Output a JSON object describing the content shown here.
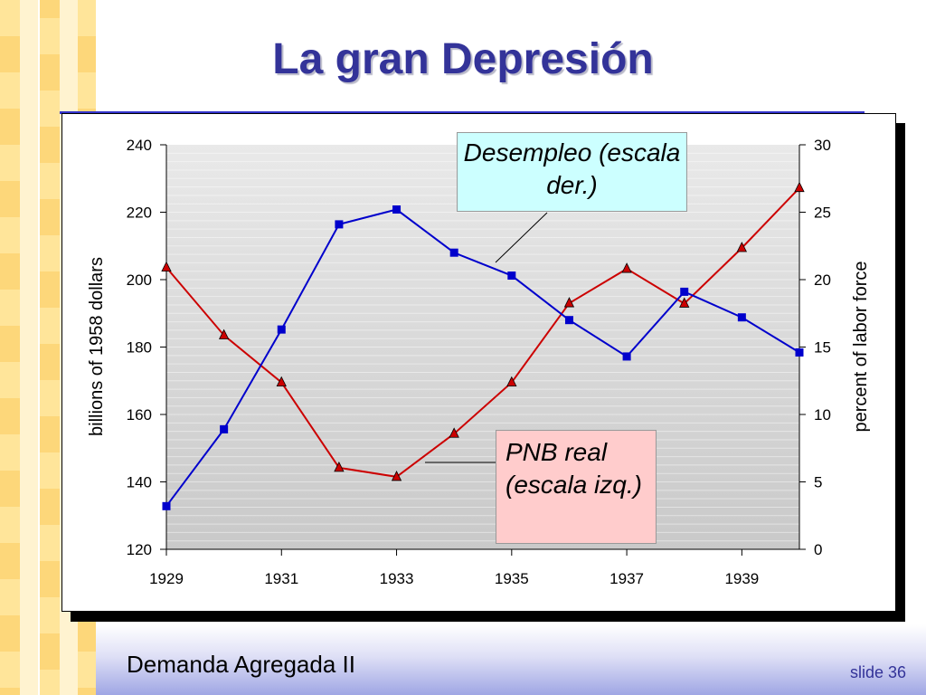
{
  "slide": {
    "title": "La gran Depresión",
    "footer": "Demanda Agregada II",
    "slide_number": "slide 36"
  },
  "callouts": {
    "unemployment": "Desempleo (escala der.)",
    "gnp": "PNB real (escala izq.)"
  },
  "colors": {
    "title": "#333399",
    "gnp_series": "#cc0000",
    "unemployment_series": "#0000cc",
    "plot_area": "#d8d8d8",
    "checker_light": "#ffe59a",
    "checker_mid": "#fdd77a"
  },
  "chart_data": {
    "type": "line",
    "x": [
      1929,
      1930,
      1931,
      1932,
      1933,
      1934,
      1935,
      1936,
      1937,
      1938,
      1939,
      1940
    ],
    "xlim": [
      1929,
      1940
    ],
    "xticks": [
      "1929",
      "1931",
      "1933",
      "1935",
      "1937",
      "1939"
    ],
    "ylabel_left": "billions of 1958 dollars",
    "ylim_left": [
      120,
      240
    ],
    "yticks_left": [
      "120",
      "140",
      "160",
      "180",
      "200",
      "220",
      "240"
    ],
    "ylabel_right": "percent of labor force",
    "ylim_right": [
      0,
      30
    ],
    "yticks_right": [
      "0",
      "5",
      "10",
      "15",
      "20",
      "25",
      "30"
    ],
    "grid": true,
    "series": [
      {
        "name": "PNB real",
        "axis": "left",
        "marker": "triangle",
        "color": "#cc0000",
        "values": [
          203.6,
          183.5,
          169.5,
          144.2,
          141.5,
          154.3,
          169.5,
          193.0,
          203.2,
          192.9,
          209.4,
          227.2
        ]
      },
      {
        "name": "Desempleo",
        "axis": "right",
        "marker": "square",
        "color": "#0000cc",
        "values": [
          3.2,
          8.9,
          16.3,
          24.1,
          25.2,
          22.0,
          20.3,
          17.0,
          14.3,
          19.1,
          17.2,
          14.6
        ]
      }
    ]
  }
}
